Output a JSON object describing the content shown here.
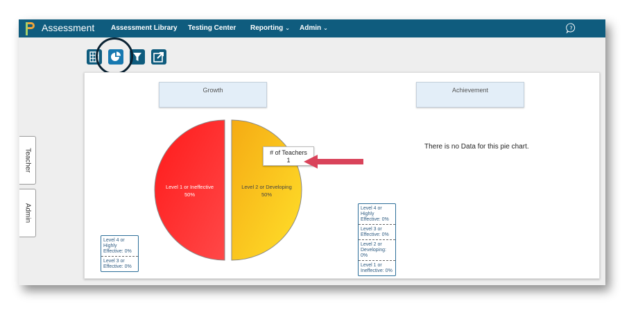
{
  "app": {
    "title": "Assessment"
  },
  "nav": {
    "items": [
      {
        "label": "Assessment Library",
        "has_dropdown": false
      },
      {
        "label": "Testing Center",
        "has_dropdown": false
      },
      {
        "label": "Reporting",
        "has_dropdown": true
      },
      {
        "label": "Admin",
        "has_dropdown": true
      }
    ],
    "dropdown_glyph": "⌄"
  },
  "toolbar": {
    "buttons": [
      {
        "icon": "table-icon"
      },
      {
        "icon": "pie-chart-icon",
        "active": true
      },
      {
        "icon": "filter-icon"
      },
      {
        "icon": "export-icon"
      }
    ]
  },
  "side_tabs": [
    {
      "label": "Teacher"
    },
    {
      "label": "Admin"
    }
  ],
  "charts": [
    {
      "title": "Growth",
      "tooltip": {
        "label": "# of Teachers",
        "value": "1"
      },
      "legend": [
        "Level 4 or Highly Effective: 0%",
        "Level 3 or Effective: 0%"
      ]
    },
    {
      "title": "Achievement",
      "empty_message": "There is no Data for this pie chart.",
      "legend": [
        "Level 4 or Highly Effective: 0%",
        "Level 3 or Effective: 0%",
        "Level 2 or Developing: 0%",
        "Level 1 or Ineffective: 0%"
      ]
    }
  ],
  "chart_data": {
    "type": "pie",
    "title": "Growth",
    "slices": [
      {
        "label": "Level 1 or Ineffective",
        "percent_label": "50%",
        "value": 50,
        "color": "#ff2a2a"
      },
      {
        "label": "Level 2 or Developing",
        "percent_label": "50%",
        "value": 50,
        "color": "#f7c51a"
      }
    ]
  },
  "colors": {
    "navbar": "#0f5c7e",
    "accent": "#0f5c7e",
    "arrow": "#d9435a"
  }
}
